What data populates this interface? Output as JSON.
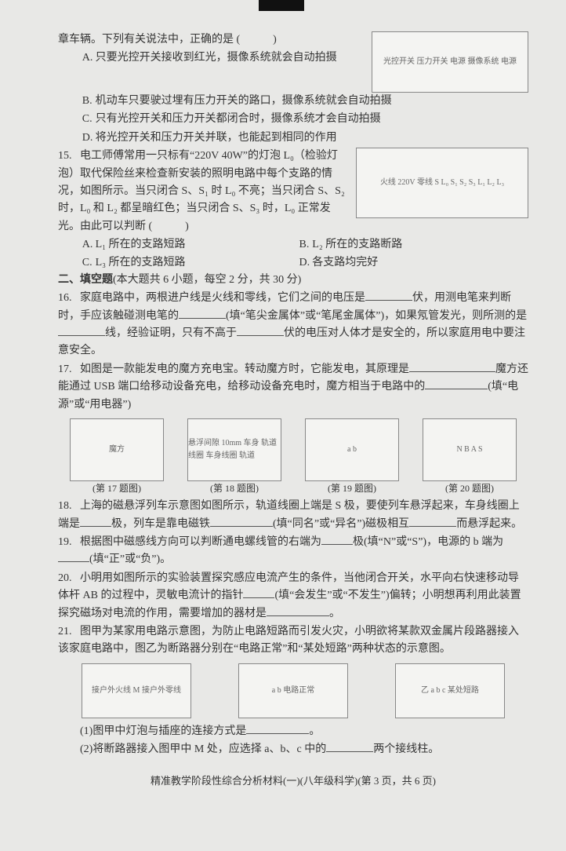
{
  "q14": {
    "stem_cont": "章车辆。下列有关说法中，正确的是",
    "paren": "(　　　)",
    "optA": "只要光控开关接收到红光，摄像系统就会自动拍摄",
    "optB": "机动车只要驶过埋有压力开关的路口，摄像系统就会自动拍摄",
    "optC": "只有光控开关和压力开关都闭合时，摄像系统才会自动拍摄",
    "optD": "将光控开关和压力开关并联，也能起到相同的作用",
    "diagram_labels": "光控开关 压力开关 电源 摄像系统 电源"
  },
  "q15": {
    "num": "15.",
    "stem1": "电工师傅常用一只标有“220V 40W”的灯泡 L₀（检验灯泡）取代保险丝来检查新安装的照明电路中每个支路的情况，如图所示。当只闭合 S、S₁ 时 L₀ 不亮；当只闭合 S、S₂ 时，L₀ 和 L₂ 都呈暗红色；当只闭合 S、S₃ 时，L₀ 正常发光。由此可以判断",
    "paren": "(　　　)",
    "optA": "L₁ 所在的支路短路",
    "optB": "L₂ 所在的支路断路",
    "optC": "L₃ 所在的支路短路",
    "optD": "各支路均完好",
    "diagram_labels": "火线 220V 零线 S L₀ S₁ S₂ S₃ L₁ L₂ L₃"
  },
  "section2": {
    "title": "二、填空题",
    "desc": "(本大题共 6 小题，每空 2 分，共 30 分)"
  },
  "q16": {
    "num": "16.",
    "t1": "家庭电路中，两根进户线是火线和零线，它们之间的电压是",
    "t2": "伏，用测电笔来判断时，手应该触碰测电笔的",
    "t3": "(填“笔尖金属体”或“笔尾金属体”)，如果氖管发光，则所测的是",
    "t4": "线，经验证明，只有不高于",
    "t5": "伏的电压对人体才是安全的，所以家庭用电中要注意安全。"
  },
  "q17": {
    "num": "17.",
    "t1": "如图是一款能发电的魔方充电宝。转动魔方时，它能发电，其原理是",
    "t2": "魔方还能通过 USB 端口给移动设备充电，给移动设备充电时，魔方相当于电路中的",
    "t3": "(填“电源”或“用电器”)"
  },
  "figs": {
    "f17": "(第 17 题图)",
    "f18": "(第 18 题图)",
    "f19": "(第 19 题图)",
    "f20": "(第 20 题图)",
    "f18_labels": "悬浮间隙 10mm 车身 轨道线圈 车身线圈 轨道",
    "f19_labels": "a b",
    "f20_labels": "N B A S"
  },
  "q18": {
    "num": "18.",
    "t1": "上海的磁悬浮列车示意图如图所示，轨道线圈上端是 S 极，要使列车悬浮起来，车身线圈上端是",
    "t2": "极，列车是靠电磁铁",
    "t3": "(填“同名”或“异名”)磁极相互",
    "t4": "而悬浮起来。"
  },
  "q19": {
    "num": "19.",
    "t1": "根据图中磁感线方向可以判断通电螺线管的右端为",
    "t2": "极(填“N”或“S”)，电源的 b 端为",
    "t3": "(填“正”或“负”)。"
  },
  "q20": {
    "num": "20.",
    "t1": "小明用如图所示的实验装置探究感应电流产生的条件，当他闭合开关，水平向右快速移动导体杆 AB 的过程中，灵敏电流计的指针",
    "t2": "(填“会发生”或“不发生”)偏转；小明想再利用此装置探究磁场对电流的作用，需要增加的器材是",
    "t3": "。"
  },
  "q21": {
    "num": "21.",
    "t1": "图甲为某家用电路示意图，为防止电路短路而引发火灾，小明欲将某款双金属片段路器接入该家庭电路中，图乙为断路器分别在“电路正常”和“某处短路”两种状态的示意图。",
    "fig_labels_1": "接户外火线 M 接户外零线",
    "fig_labels_2": "a b 电路正常",
    "fig_labels_3": "乙 a b c 某处短路",
    "sub1_pre": "(1)图甲中灯泡与插座的连接方式是",
    "sub1_post": "。",
    "sub2_pre": "(2)将断路器接入图甲中 M 处，应选择 a、b、c 中的",
    "sub2_post": "两个接线柱。"
  },
  "footer": "精准教学阶段性综合分析材料(一)(八年级科学)(第 3 页，共 6 页)"
}
